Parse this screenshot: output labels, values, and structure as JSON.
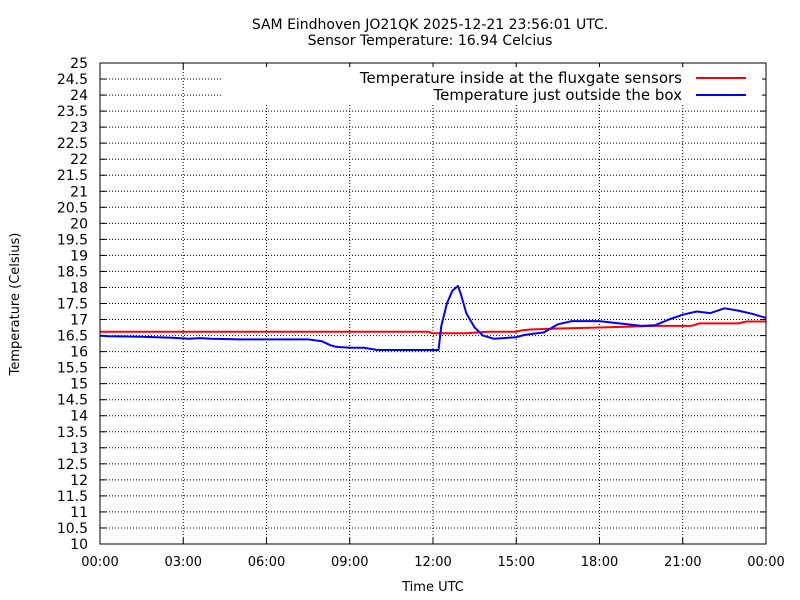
{
  "chart_data": {
    "type": "line",
    "title": "SAM Eindhoven JO21QK 2025-12-21 23:56:01 UTC.",
    "subtitle": "Sensor Temperature: 16.94 Celcius",
    "xlabel": "Time UTC",
    "ylabel": "Temperature (Celsius)",
    "xlim": [
      0,
      24
    ],
    "ylim": [
      10,
      25
    ],
    "x_tick_labels": [
      "00:00",
      "03:00",
      "06:00",
      "09:00",
      "12:00",
      "15:00",
      "18:00",
      "21:00",
      "00:00"
    ],
    "y_ticks": [
      10,
      10.5,
      11,
      11.5,
      12,
      12.5,
      13,
      13.5,
      14,
      14.5,
      15,
      15.5,
      16,
      16.5,
      17,
      17.5,
      18,
      18.5,
      19,
      19.5,
      20,
      20.5,
      21,
      21.5,
      22,
      22.5,
      23,
      23.5,
      24,
      24.5,
      25
    ],
    "grid": true,
    "legend_position": "top-right",
    "series": [
      {
        "name": "Temperature inside at the fluxgate sensors",
        "color": "#ff0000",
        "x": [
          0,
          11.8,
          12.0,
          13.2,
          14.0,
          15.0,
          15.2,
          15.5,
          16.5,
          18.0,
          20.0,
          21.3,
          21.6,
          23.0,
          23.3,
          24.0
        ],
        "y": [
          16.62,
          16.62,
          16.57,
          16.57,
          16.62,
          16.62,
          16.66,
          16.69,
          16.72,
          16.75,
          16.8,
          16.8,
          16.88,
          16.88,
          16.94,
          16.94
        ]
      },
      {
        "name": "Temperature just outside the box",
        "color": "#0000ff",
        "x": [
          0,
          0.3,
          1.5,
          2.6,
          3.2,
          3.6,
          4.0,
          5.0,
          7.5,
          8.0,
          8.3,
          8.5,
          9.0,
          9.5,
          10.0,
          11.0,
          12.2,
          12.3,
          12.5,
          12.7,
          12.9,
          13.0,
          13.2,
          13.5,
          13.8,
          14.2,
          15.0,
          15.3,
          16.0,
          16.5,
          17.0,
          18.0,
          18.5,
          19.0,
          19.5,
          20.0,
          20.5,
          21.0,
          21.5,
          22.0,
          22.5,
          23.0,
          23.5,
          24.0
        ],
        "y": [
          16.5,
          16.48,
          16.46,
          16.43,
          16.4,
          16.42,
          16.4,
          16.38,
          16.38,
          16.32,
          16.2,
          16.15,
          16.12,
          16.12,
          16.05,
          16.05,
          16.05,
          16.8,
          17.5,
          17.9,
          18.05,
          17.8,
          17.2,
          16.75,
          16.5,
          16.4,
          16.45,
          16.52,
          16.6,
          16.85,
          16.95,
          16.95,
          16.9,
          16.85,
          16.8,
          16.82,
          17.0,
          17.15,
          17.25,
          17.2,
          17.35,
          17.28,
          17.18,
          17.05
        ]
      }
    ]
  }
}
